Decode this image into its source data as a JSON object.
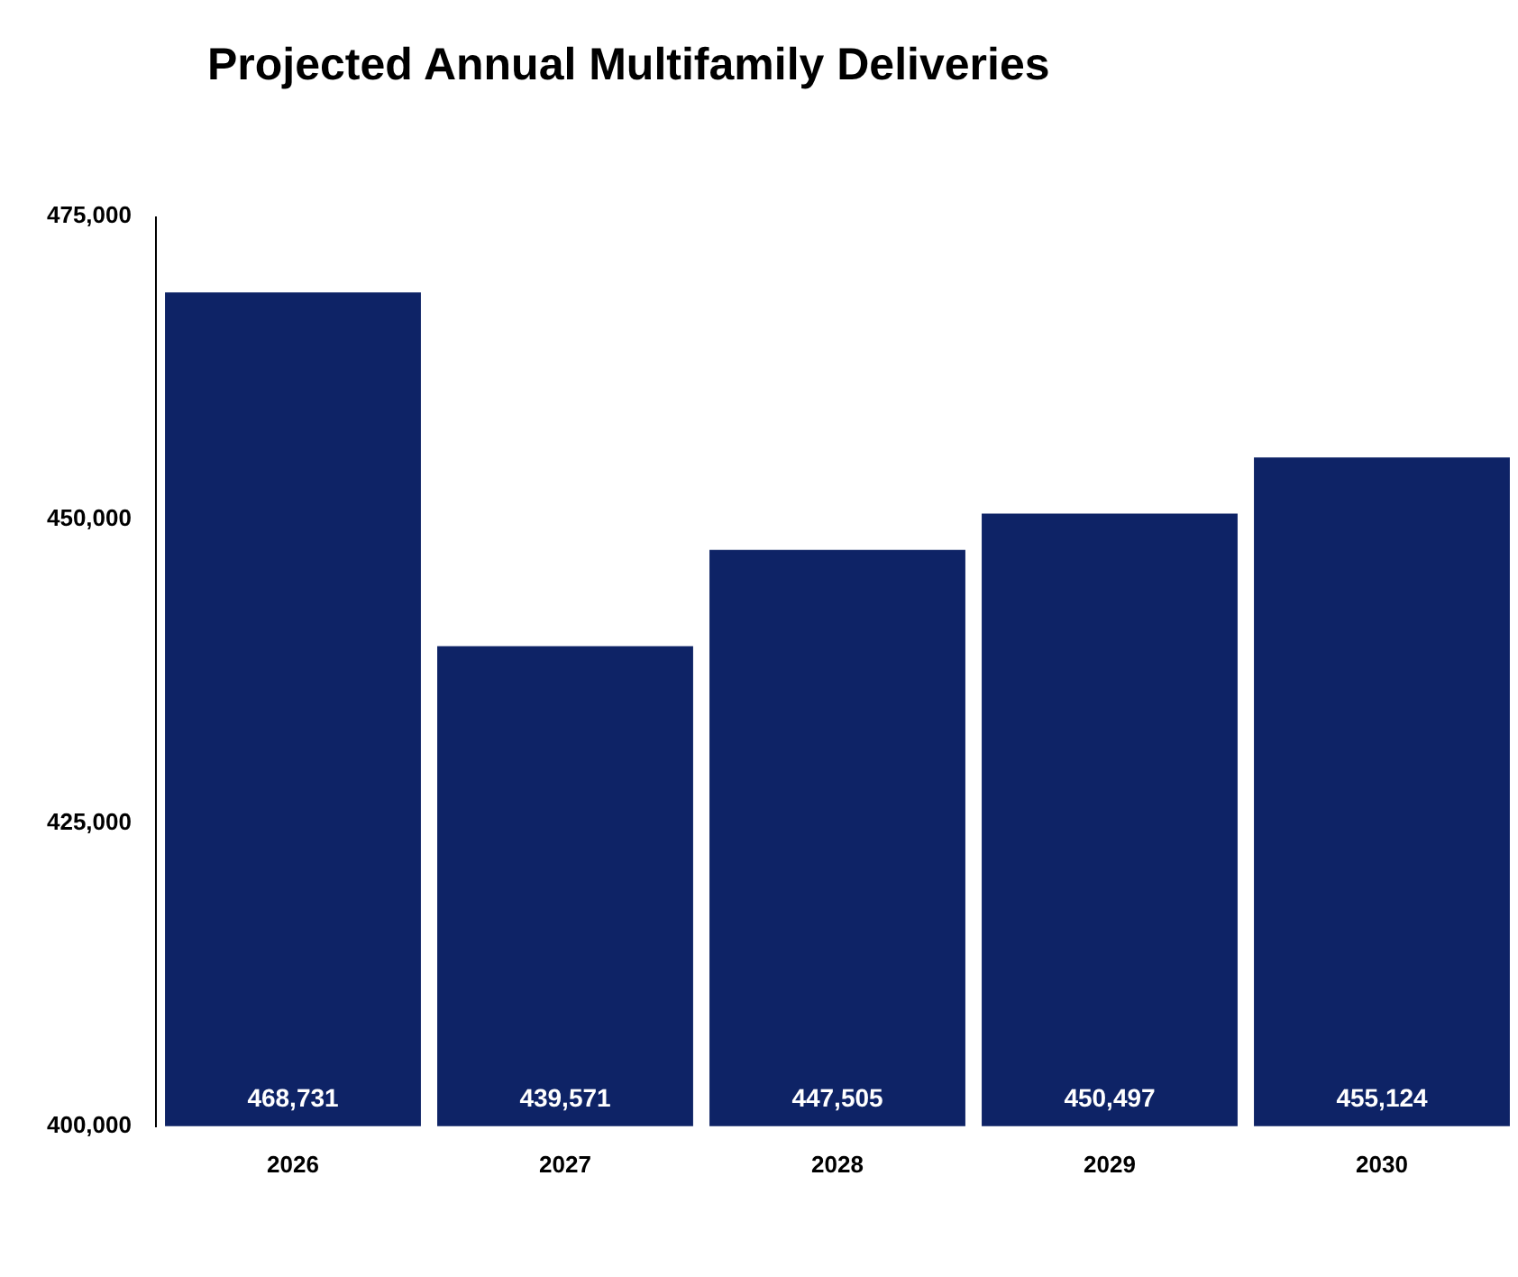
{
  "chart_data": {
    "type": "bar",
    "title": "Projected Annual Multifamily Deliveries",
    "categories": [
      "2026",
      "2027",
      "2028",
      "2029",
      "2030"
    ],
    "values": [
      468731,
      439571,
      447505,
      450497,
      455124
    ],
    "value_labels": [
      "468,731",
      "439,571",
      "447,505",
      "450,497",
      "455,124"
    ],
    "color": "#0e2366",
    "ylim": [
      400000,
      475000
    ],
    "yticks": [
      {
        "value": 400000,
        "label": "400,000"
      },
      {
        "value": 425000,
        "label": "425,000"
      },
      {
        "value": 450000,
        "label": "450,000"
      },
      {
        "value": 475000,
        "label": "475,000"
      }
    ],
    "grid": false,
    "legend": false
  }
}
